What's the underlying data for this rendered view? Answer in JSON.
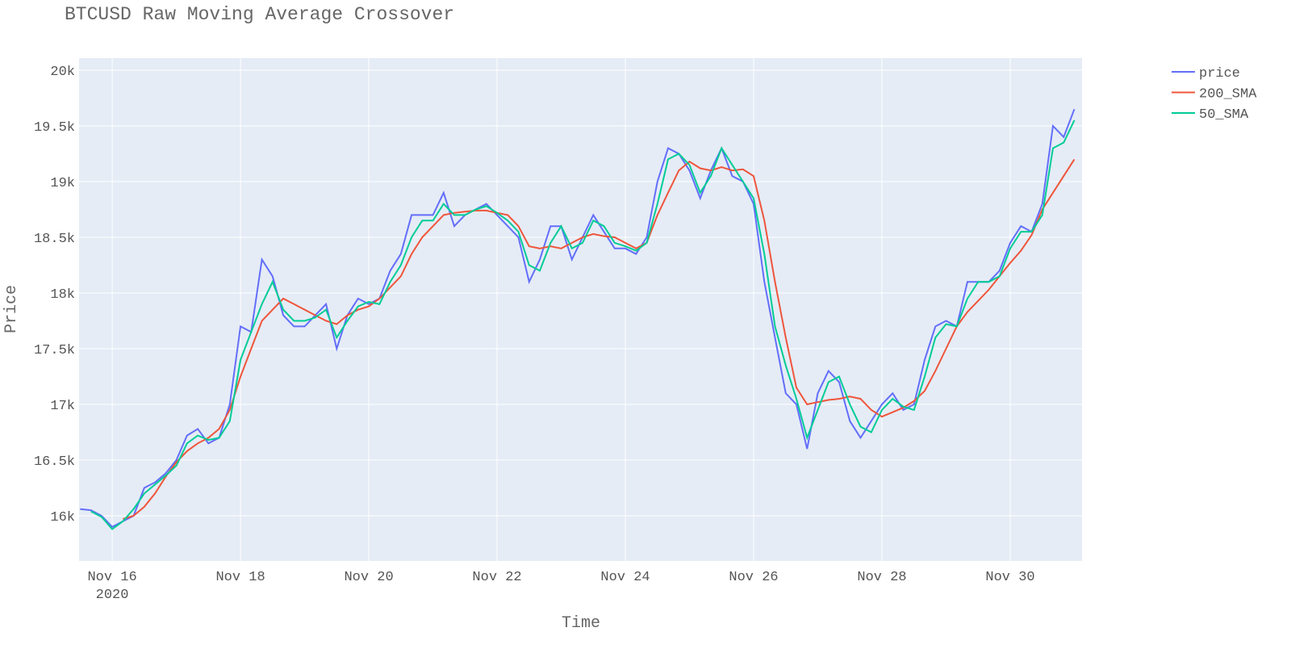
{
  "chart_data": {
    "type": "line",
    "title": "BTCUSD Raw Moving Average Crossover",
    "x_label": "Time",
    "y_label": "Price",
    "x": [
      "2020-11-15 12:00",
      "2020-11-15 16:00",
      "2020-11-15 20:00",
      "2020-11-16 00:00",
      "2020-11-16 04:00",
      "2020-11-16 08:00",
      "2020-11-16 12:00",
      "2020-11-16 16:00",
      "2020-11-16 20:00",
      "2020-11-17 00:00",
      "2020-11-17 04:00",
      "2020-11-17 08:00",
      "2020-11-17 12:00",
      "2020-11-17 16:00",
      "2020-11-17 20:00",
      "2020-11-18 00:00",
      "2020-11-18 04:00",
      "2020-11-18 08:00",
      "2020-11-18 12:00",
      "2020-11-18 16:00",
      "2020-11-18 20:00",
      "2020-11-19 00:00",
      "2020-11-19 04:00",
      "2020-11-19 08:00",
      "2020-11-19 12:00",
      "2020-11-19 16:00",
      "2020-11-19 20:00",
      "2020-11-20 00:00",
      "2020-11-20 04:00",
      "2020-11-20 08:00",
      "2020-11-20 12:00",
      "2020-11-20 16:00",
      "2020-11-20 20:00",
      "2020-11-21 00:00",
      "2020-11-21 04:00",
      "2020-11-21 08:00",
      "2020-11-21 12:00",
      "2020-11-21 16:00",
      "2020-11-21 20:00",
      "2020-11-22 00:00",
      "2020-11-22 04:00",
      "2020-11-22 08:00",
      "2020-11-22 12:00",
      "2020-11-22 16:00",
      "2020-11-22 20:00",
      "2020-11-23 00:00",
      "2020-11-23 04:00",
      "2020-11-23 08:00",
      "2020-11-23 12:00",
      "2020-11-23 16:00",
      "2020-11-23 20:00",
      "2020-11-24 00:00",
      "2020-11-24 04:00",
      "2020-11-24 08:00",
      "2020-11-24 12:00",
      "2020-11-24 16:00",
      "2020-11-24 20:00",
      "2020-11-25 00:00",
      "2020-11-25 04:00",
      "2020-11-25 08:00",
      "2020-11-25 12:00",
      "2020-11-25 16:00",
      "2020-11-25 20:00",
      "2020-11-26 00:00",
      "2020-11-26 04:00",
      "2020-11-26 08:00",
      "2020-11-26 12:00",
      "2020-11-26 16:00",
      "2020-11-26 20:00",
      "2020-11-27 00:00",
      "2020-11-27 04:00",
      "2020-11-27 08:00",
      "2020-11-27 12:00",
      "2020-11-27 16:00",
      "2020-11-27 20:00",
      "2020-11-28 00:00",
      "2020-11-28 04:00",
      "2020-11-28 08:00",
      "2020-11-28 12:00",
      "2020-11-28 16:00",
      "2020-11-28 20:00",
      "2020-11-29 00:00",
      "2020-11-29 04:00",
      "2020-11-29 08:00",
      "2020-11-29 12:00",
      "2020-11-29 16:00",
      "2020-11-29 20:00",
      "2020-11-30 00:00",
      "2020-11-30 04:00",
      "2020-11-30 08:00",
      "2020-11-30 12:00",
      "2020-11-30 16:00",
      "2020-11-30 20:00",
      "2020-12-01 00:00"
    ],
    "series": [
      {
        "name": "price",
        "color": "#636efa",
        "values": [
          16060,
          16050,
          16000,
          15900,
          15950,
          16000,
          16250,
          16300,
          16380,
          16500,
          16720,
          16780,
          16650,
          16700,
          17000,
          17700,
          17650,
          18300,
          18150,
          17800,
          17700,
          17700,
          17800,
          17900,
          17500,
          17800,
          17950,
          17900,
          17950,
          18200,
          18350,
          18700,
          18700,
          18700,
          18900,
          18600,
          18700,
          18750,
          18800,
          18700,
          18600,
          18500,
          18100,
          18300,
          18600,
          18600,
          18300,
          18500,
          18700,
          18550,
          18400,
          18400,
          18350,
          18500,
          19000,
          19300,
          19250,
          19100,
          18850,
          19100,
          19300,
          19050,
          19000,
          18800,
          18100,
          17600,
          17100,
          17000,
          16600,
          17100,
          17300,
          17200,
          16850,
          16700,
          16850,
          17000,
          17100,
          16950,
          17000,
          17400,
          17700,
          17750,
          17700,
          18100,
          18100,
          18100,
          18200,
          18450,
          18600,
          18550,
          18800,
          19500,
          19400,
          19650
        ]
      },
      {
        "name": "200_SMA",
        "color": "#ef553b",
        "values": [
          null,
          null,
          null,
          null,
          15970,
          16000,
          16080,
          16200,
          16350,
          16480,
          16580,
          16650,
          16700,
          16780,
          16950,
          17250,
          17500,
          17750,
          17850,
          17950,
          17900,
          17850,
          17800,
          17750,
          17720,
          17800,
          17850,
          17880,
          17950,
          18050,
          18150,
          18350,
          18500,
          18600,
          18700,
          18720,
          18730,
          18740,
          18740,
          18720,
          18700,
          18600,
          18420,
          18400,
          18420,
          18400,
          18450,
          18500,
          18530,
          18510,
          18500,
          18450,
          18400,
          18450,
          18700,
          18900,
          19100,
          19180,
          19120,
          19100,
          19130,
          19100,
          19110,
          19050,
          18650,
          18100,
          17600,
          17150,
          17000,
          17020,
          17040,
          17050,
          17070,
          17050,
          16950,
          16890,
          16930,
          16970,
          17030,
          17120,
          17300,
          17500,
          17700,
          17830,
          17930,
          18030,
          18150,
          18270,
          18380,
          18520,
          18750,
          18900,
          19050,
          19200
        ]
      },
      {
        "name": "50_SMA",
        "color": "#00cc96",
        "values": [
          null,
          16040,
          15990,
          15880,
          15950,
          16060,
          16200,
          16280,
          16360,
          16450,
          16650,
          16720,
          16680,
          16700,
          16850,
          17400,
          17650,
          17900,
          18100,
          17850,
          17750,
          17750,
          17780,
          17850,
          17600,
          17750,
          17880,
          17920,
          17900,
          18100,
          18250,
          18500,
          18650,
          18650,
          18800,
          18700,
          18700,
          18750,
          18780,
          18720,
          18650,
          18550,
          18250,
          18200,
          18450,
          18600,
          18400,
          18450,
          18650,
          18600,
          18450,
          18420,
          18380,
          18450,
          18800,
          19200,
          19250,
          19150,
          18900,
          19050,
          19300,
          19150,
          19000,
          18850,
          18350,
          17700,
          17350,
          17050,
          16700,
          16950,
          17200,
          17250,
          17000,
          16800,
          16750,
          16950,
          17050,
          16980,
          16950,
          17250,
          17600,
          17720,
          17700,
          17950,
          18100,
          18100,
          18150,
          18400,
          18550,
          18550,
          18700,
          19300,
          19350,
          19550
        ]
      }
    ],
    "xlim": [
      "2020-11-15 11:36",
      "2020-12-01 02:52"
    ],
    "xticks": [
      {
        "value": "2020-11-16 00:00",
        "label": "Nov 16\n2020"
      },
      {
        "value": "2020-11-18 00:00",
        "label": "Nov 18"
      },
      {
        "value": "2020-11-20 00:00",
        "label": "Nov 20"
      },
      {
        "value": "2020-11-22 00:00",
        "label": "Nov 22"
      },
      {
        "value": "2020-11-24 00:00",
        "label": "Nov 24"
      },
      {
        "value": "2020-11-26 00:00",
        "label": "Nov 26"
      },
      {
        "value": "2020-11-28 00:00",
        "label": "Nov 28"
      },
      {
        "value": "2020-11-30 00:00",
        "label": "Nov 30"
      }
    ],
    "ylim": [
      15594,
      20109
    ],
    "yticks": [
      {
        "value": 16000,
        "label": "16k"
      },
      {
        "value": 16500,
        "label": "16.5k"
      },
      {
        "value": 17000,
        "label": "17k"
      },
      {
        "value": 17500,
        "label": "17.5k"
      },
      {
        "value": 18000,
        "label": "18k"
      },
      {
        "value": 18500,
        "label": "18.5k"
      },
      {
        "value": 19000,
        "label": "19k"
      },
      {
        "value": 19500,
        "label": "19.5k"
      },
      {
        "value": 20000,
        "label": "20k"
      }
    ],
    "grid": true,
    "legend": "right"
  }
}
